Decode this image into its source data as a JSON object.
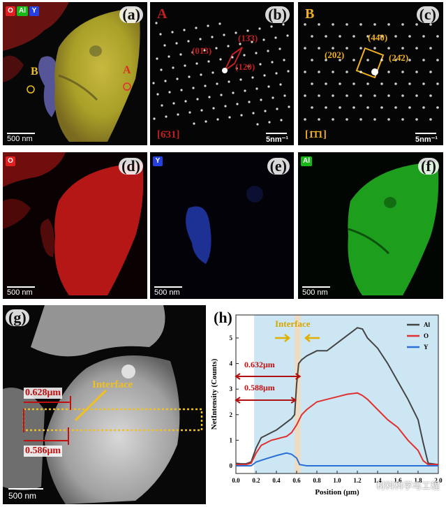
{
  "panels": {
    "a": {
      "label": "(a)",
      "chips": [
        "O",
        "Al",
        "Y"
      ],
      "point_a": "A",
      "point_b": "B",
      "scale": "500 nm"
    },
    "b": {
      "label": "(b)",
      "corner": "A",
      "idx1": "(13̄3)",
      "idx2": "(01̄3)",
      "idx3": "(120)",
      "zone": "[6̄31]",
      "scale": "5nm⁻¹"
    },
    "c": {
      "label": "(c)",
      "corner": "B",
      "idx1": "(44̄0)",
      "idx2": "(202)",
      "idx3": "(24̄2)",
      "zone": "[1̄1̄1]",
      "scale": "5nm⁻¹"
    },
    "d": {
      "label": "(d)",
      "chip": "O",
      "scale": "500 nm"
    },
    "e": {
      "label": "(e)",
      "chip": "Y",
      "scale": "500 nm"
    },
    "f": {
      "label": "(f)",
      "chip": "Al",
      "scale": "500 nm"
    },
    "g": {
      "label": "(g)",
      "interface": "Interface",
      "m1": "0.628μm",
      "m2": "0.586μm",
      "scale": "500 nm"
    },
    "h": {
      "label": "(h)",
      "interface": "Interface",
      "m1": "0.632μm",
      "m2": "0.588μm"
    }
  },
  "colors": {
    "O": "#e02020",
    "Al": "#18b818",
    "Y": "#2440e0"
  },
  "chart_data": {
    "type": "line",
    "xlabel": "Position (μm)",
    "ylabel": "NetIntensity (Counts)",
    "xlim": [
      0.0,
      2.0
    ],
    "ylim": [
      -0.3,
      5.9
    ],
    "xticks": [
      "0.0",
      "0.2",
      "0.4",
      "0.6",
      "0.8",
      "1.0",
      "1.2",
      "1.4",
      "1.6",
      "1.8",
      "2.0"
    ],
    "yticks": [
      "0",
      "1",
      "2",
      "3",
      "4",
      "5"
    ],
    "legend": "top-right",
    "shaded_regions": [
      {
        "x": [
          0.18,
          2.0
        ],
        "color": "#cde6f4"
      },
      {
        "x": [
          0.58,
          0.64
        ],
        "color": "#ecdcc4"
      }
    ],
    "series": [
      {
        "name": "Al",
        "color": "#444444",
        "x": [
          0.0,
          0.05,
          0.1,
          0.15,
          0.2,
          0.25,
          0.3,
          0.35,
          0.4,
          0.45,
          0.5,
          0.55,
          0.58,
          0.6,
          0.62,
          0.65,
          0.7,
          0.8,
          0.9,
          1.0,
          1.1,
          1.2,
          1.25,
          1.3,
          1.4,
          1.5,
          1.6,
          1.7,
          1.8,
          1.85,
          1.9,
          2.0
        ],
        "y": [
          0.1,
          0.08,
          0.08,
          0.15,
          0.7,
          1.1,
          1.2,
          1.3,
          1.4,
          1.55,
          1.7,
          1.85,
          2.0,
          3.2,
          4.0,
          4.15,
          4.3,
          4.5,
          4.5,
          4.8,
          5.1,
          5.4,
          5.35,
          5.0,
          4.6,
          4.0,
          3.3,
          2.6,
          1.8,
          0.9,
          0.1,
          0.05
        ]
      },
      {
        "name": "O",
        "color": "#e03030",
        "x": [
          0.0,
          0.05,
          0.1,
          0.15,
          0.2,
          0.25,
          0.3,
          0.35,
          0.4,
          0.45,
          0.5,
          0.55,
          0.6,
          0.65,
          0.7,
          0.8,
          0.9,
          1.0,
          1.1,
          1.2,
          1.25,
          1.3,
          1.4,
          1.5,
          1.6,
          1.7,
          1.8,
          1.85,
          1.9,
          2.0
        ],
        "y": [
          0.05,
          0.05,
          0.05,
          0.1,
          0.5,
          0.8,
          0.9,
          1.0,
          1.05,
          1.1,
          1.15,
          1.3,
          1.6,
          2.0,
          2.2,
          2.5,
          2.6,
          2.7,
          2.8,
          2.85,
          2.75,
          2.6,
          2.2,
          1.8,
          1.5,
          1.0,
          0.6,
          0.2,
          0.05,
          0.05
        ]
      },
      {
        "name": "Y",
        "color": "#2a6fd6",
        "x": [
          0.0,
          0.05,
          0.1,
          0.15,
          0.2,
          0.3,
          0.4,
          0.45,
          0.5,
          0.55,
          0.6,
          0.63,
          0.7,
          1.0,
          1.5,
          2.0
        ],
        "y": [
          0.0,
          0.0,
          0.0,
          0.0,
          0.15,
          0.28,
          0.4,
          0.45,
          0.5,
          0.45,
          0.3,
          0.05,
          0.0,
          0.0,
          0.0,
          0.0
        ]
      }
    ]
  },
  "watermark": "材料科学与工程"
}
